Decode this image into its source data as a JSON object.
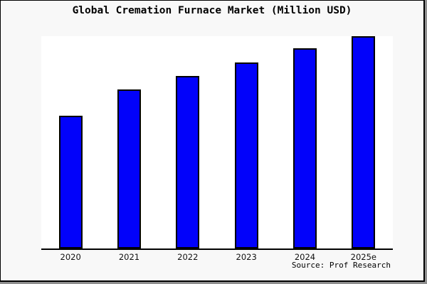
{
  "title": "Global Cremation Furnace Market (Million USD)",
  "source_note": "Source: Prof Research",
  "colors": {
    "figure_background": "#f8f8f8",
    "plot_background": "#ffffff",
    "bar_fill": "#0202fa",
    "bar_edge": "#000000",
    "axis_line": "#000000",
    "frame_border": "#000000",
    "frame_shadow": "#8f8f8f",
    "text": "#000000"
  },
  "chart_data": {
    "type": "bar",
    "title": "Global Cremation Furnace Market (Million USD)",
    "categories": [
      "2020",
      "2021",
      "2022",
      "2023",
      "2024",
      "2025e"
    ],
    "values": [
      62.5,
      75,
      81.3,
      87.5,
      94.2,
      100
    ],
    "note": "No y-axis, gridlines or value labels shown; values estimated from bar heights relative to tallest bar (2025e = 100)",
    "xlabel": "",
    "ylabel": "",
    "ylim": [
      0,
      100
    ],
    "grid": false,
    "legend": false,
    "annotations": [
      "Source: Prof Research"
    ]
  }
}
